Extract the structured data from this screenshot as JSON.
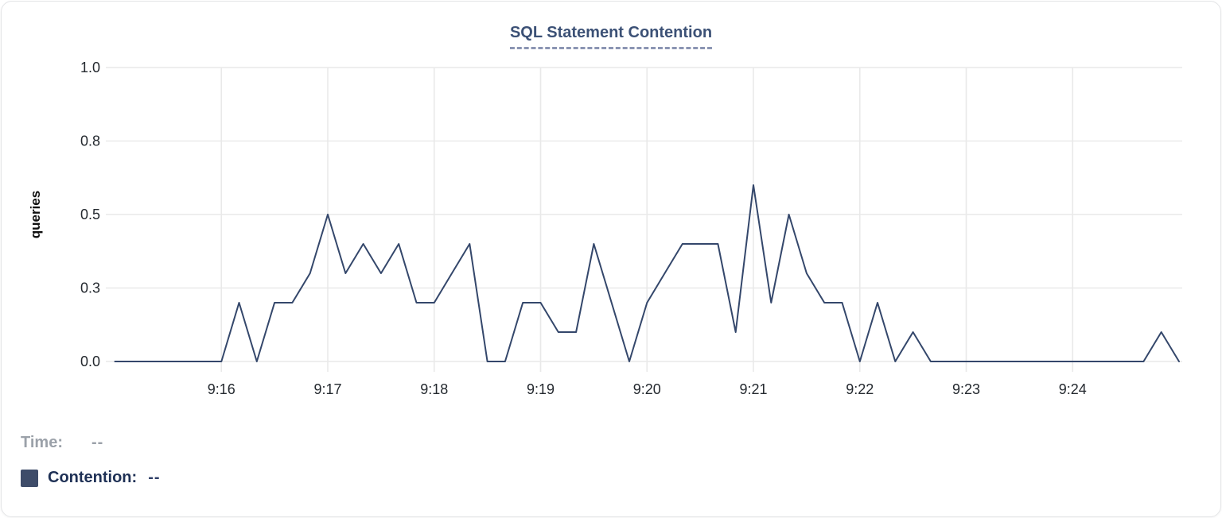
{
  "chart": {
    "title": "SQL Statement Contention",
    "ylabel": "queries"
  },
  "readout": {
    "time_label": "Time:",
    "time_value": "--",
    "contention_label": "Contention:",
    "contention_value": "--"
  },
  "colors": {
    "line": "#34476b",
    "swatch": "#3e4c69",
    "grid": "#e9e9e9",
    "tick_text": "#24292f",
    "title_text": "#3c5176",
    "title_dash": "#8b95b3",
    "time_text": "#9ba1a9",
    "contention_text": "#1e3055"
  },
  "chart_data": {
    "type": "line",
    "title": "SQL Statement Contention",
    "xlabel": "",
    "ylabel": "queries",
    "ylim": [
      0,
      1
    ],
    "grid": true,
    "legend_position": "none",
    "x_interval_seconds": 10,
    "x": [
      "9:15:00",
      "9:15:10",
      "9:15:20",
      "9:15:30",
      "9:15:40",
      "9:15:50",
      "9:16:00",
      "9:16:10",
      "9:16:20",
      "9:16:30",
      "9:16:40",
      "9:16:50",
      "9:17:00",
      "9:17:10",
      "9:17:20",
      "9:17:30",
      "9:17:40",
      "9:17:50",
      "9:18:00",
      "9:18:10",
      "9:18:20",
      "9:18:30",
      "9:18:40",
      "9:18:50",
      "9:19:00",
      "9:19:10",
      "9:19:20",
      "9:19:30",
      "9:19:40",
      "9:19:50",
      "9:20:00",
      "9:20:10",
      "9:20:20",
      "9:20:30",
      "9:20:40",
      "9:20:50",
      "9:21:00",
      "9:21:10",
      "9:21:20",
      "9:21:30",
      "9:21:40",
      "9:21:50",
      "9:22:00",
      "9:22:10",
      "9:22:20",
      "9:22:30",
      "9:22:40",
      "9:22:50",
      "9:23:00",
      "9:23:10",
      "9:23:20",
      "9:23:30",
      "9:23:40",
      "9:23:50",
      "9:24:00",
      "9:24:10",
      "9:24:20",
      "9:24:30",
      "9:24:40",
      "9:24:50",
      "9:25:00"
    ],
    "series": [
      {
        "name": "Contention",
        "color": "#34476b",
        "values": [
          0,
          0,
          0,
          0,
          0,
          0,
          0,
          0.2,
          0,
          0.2,
          0.2,
          0.3,
          0.5,
          0.3,
          0.4,
          0.3,
          0.4,
          0.2,
          0.2,
          0.3,
          0.4,
          0,
          0,
          0.2,
          0.2,
          0.1,
          0.1,
          0.4,
          0.2,
          0,
          0.2,
          0.3,
          0.4,
          0.4,
          0.4,
          0.1,
          0.6,
          0.2,
          0.5,
          0.3,
          0.2,
          0.2,
          0,
          0.2,
          0,
          0.1,
          0,
          0,
          0,
          0,
          0,
          0,
          0,
          0,
          0,
          0,
          0,
          0,
          0,
          0.1,
          0
        ]
      }
    ],
    "xticks": [
      {
        "label": "9:16",
        "t": 60
      },
      {
        "label": "9:17",
        "t": 120
      },
      {
        "label": "9:18",
        "t": 180
      },
      {
        "label": "9:19",
        "t": 240
      },
      {
        "label": "9:20",
        "t": 300
      },
      {
        "label": "9:21",
        "t": 360
      },
      {
        "label": "9:22",
        "t": 420
      },
      {
        "label": "9:23",
        "t": 480
      },
      {
        "label": "9:24",
        "t": 540
      }
    ],
    "yticks": [
      {
        "label": "0.0",
        "value": 0
      },
      {
        "label": "0.3",
        "value": 0.25
      },
      {
        "label": "0.5",
        "value": 0.5
      },
      {
        "label": "0.8",
        "value": 0.75
      },
      {
        "label": "1.0",
        "value": 1
      }
    ]
  }
}
